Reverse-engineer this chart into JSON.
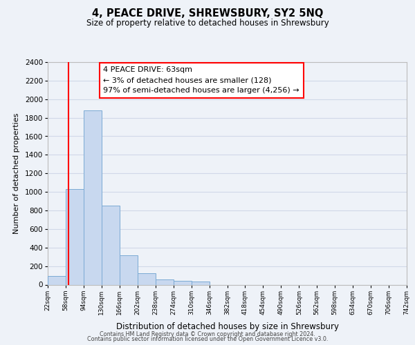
{
  "title": "4, PEACE DRIVE, SHREWSBURY, SY2 5NQ",
  "subtitle": "Size of property relative to detached houses in Shrewsbury",
  "xlabel": "Distribution of detached houses by size in Shrewsbury",
  "ylabel": "Number of detached properties",
  "bar_left_edges": [
    22,
    58,
    94,
    130,
    166,
    202,
    238,
    274,
    310,
    346,
    382,
    418,
    454,
    490,
    526,
    562,
    598,
    634,
    670,
    706
  ],
  "bar_heights": [
    90,
    1030,
    1880,
    855,
    320,
    120,
    55,
    40,
    30,
    0,
    0,
    0,
    0,
    0,
    0,
    0,
    0,
    0,
    0,
    0
  ],
  "bin_width": 36,
  "bar_color": "#c8d8ef",
  "bar_edgecolor": "#7baad4",
  "tick_labels": [
    "22sqm",
    "58sqm",
    "94sqm",
    "130sqm",
    "166sqm",
    "202sqm",
    "238sqm",
    "274sqm",
    "310sqm",
    "346sqm",
    "382sqm",
    "418sqm",
    "454sqm",
    "490sqm",
    "526sqm",
    "562sqm",
    "598sqm",
    "634sqm",
    "670sqm",
    "706sqm",
    "742sqm"
  ],
  "tick_positions": [
    22,
    58,
    94,
    130,
    166,
    202,
    238,
    274,
    310,
    346,
    382,
    418,
    454,
    490,
    526,
    562,
    598,
    634,
    670,
    706,
    742
  ],
  "ylim": [
    0,
    2400
  ],
  "yticks": [
    0,
    200,
    400,
    600,
    800,
    1000,
    1200,
    1400,
    1600,
    1800,
    2000,
    2200,
    2400
  ],
  "property_line_x": 63,
  "annotation_title": "4 PEACE DRIVE: 63sqm",
  "annotation_line1": "← 3% of detached houses are smaller (128)",
  "annotation_line2": "97% of semi-detached houses are larger (4,256) →",
  "footer_line1": "Contains HM Land Registry data © Crown copyright and database right 2024.",
  "footer_line2": "Contains public sector information licensed under the Open Government Licence v3.0.",
  "grid_color": "#d0d8e8",
  "bg_color": "#eef2f8",
  "plot_bg_color": "#eef2f8"
}
